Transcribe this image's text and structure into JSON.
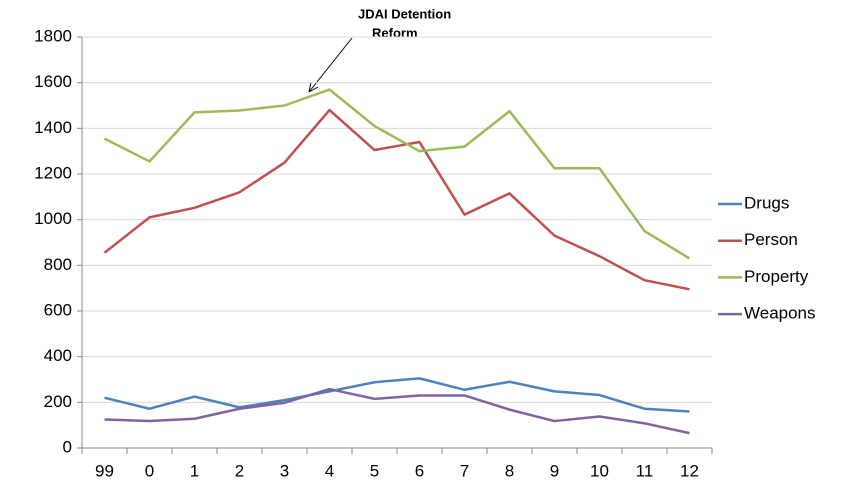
{
  "chart_data": {
    "type": "line",
    "annotation": [
      "JDAI Detention",
      "Reform"
    ],
    "categories": [
      "99",
      "0",
      "1",
      "2",
      "3",
      "4",
      "5",
      "6",
      "7",
      "8",
      "9",
      "10",
      "11",
      "12"
    ],
    "series": [
      {
        "name": "Drugs",
        "color": "#4f81bd",
        "values": [
          220,
          172,
          225,
          178,
          210,
          248,
          288,
          305,
          255,
          290,
          248,
          232,
          172,
          160
        ]
      },
      {
        "name": "Person",
        "color": "#c0504d",
        "values": [
          855,
          1010,
          1052,
          1120,
          1250,
          1480,
          1305,
          1340,
          1022,
          1115,
          930,
          840,
          735,
          695
        ]
      },
      {
        "name": "Property",
        "color": "#9bbb59",
        "values": [
          1355,
          1255,
          1470,
          1478,
          1500,
          1570,
          1410,
          1300,
          1320,
          1475,
          1225,
          1225,
          950,
          830
        ]
      },
      {
        "name": "Weapons",
        "color": "#8064a2",
        "values": [
          125,
          118,
          128,
          172,
          198,
          258,
          215,
          230,
          230,
          168,
          118,
          138,
          108,
          65
        ]
      }
    ],
    "ylim": [
      0,
      1800
    ],
    "yticks": [
      0,
      200,
      400,
      600,
      800,
      1000,
      1200,
      1400,
      1600,
      1800
    ],
    "grid": true,
    "legend": "right"
  }
}
